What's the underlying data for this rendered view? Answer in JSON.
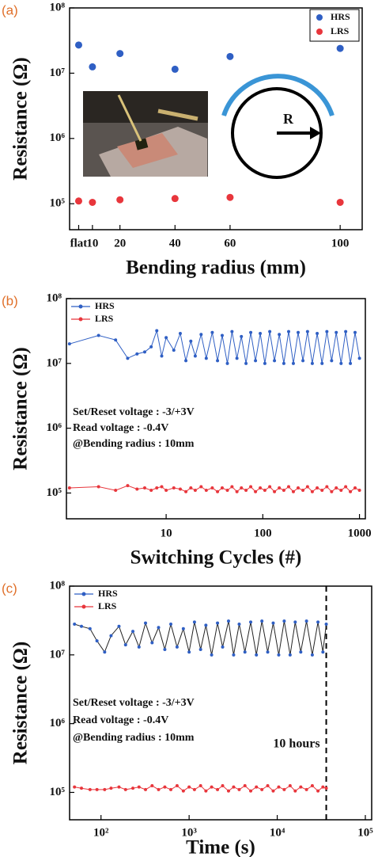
{
  "chart_data": [
    {
      "type": "scatter",
      "panel_label": "(a)",
      "x_label": "Bending radius (mm)",
      "y_label": "Resistance (Ω)",
      "x": [
        5,
        10,
        20,
        40,
        60,
        100
      ],
      "series": [
        {
          "name": "HRS",
          "color": "#2f5fc4",
          "values": [
            27000000.0,
            12500000.0,
            20000000.0,
            11500000.0,
            18000000.0,
            24000000.0
          ]
        },
        {
          "name": "LRS",
          "color": "#e8363c",
          "values": [
            110000.0,
            105000.0,
            115000.0,
            120000.0,
            125000.0,
            105000.0
          ]
        }
      ],
      "xlim": [
        1.7,
        108
      ],
      "xticks": [
        {
          "value": 5,
          "label": "flat"
        },
        10,
        20,
        40,
        60,
        100
      ],
      "ylim": [
        40000,
        100000000.0
      ],
      "y_log": true,
      "yticks": [
        {
          "value": 100000,
          "label": "10⁵"
        },
        {
          "value": 1000000,
          "label": "10⁶"
        },
        {
          "value": 10000000,
          "label": "10⁷"
        },
        {
          "value": 100000000,
          "label": "10⁸"
        }
      ],
      "legend": "upper right",
      "annotations": [
        "R"
      ]
    },
    {
      "type": "line",
      "panel_label": "(b)",
      "x_label": "Switching Cycles (#)",
      "y_label": "Resistance (Ω)",
      "x": [
        1,
        2,
        3,
        4,
        5,
        6,
        7,
        8,
        9,
        10,
        12,
        14,
        16,
        18,
        20,
        23,
        26,
        30,
        34,
        38,
        43,
        48,
        54,
        60,
        67,
        75,
        84,
        94,
        105,
        118,
        132,
        148,
        165,
        185,
        207,
        232,
        260,
        290,
        325,
        365,
        410,
        460,
        515,
        575,
        645,
        720,
        805,
        900,
        1000
      ],
      "series": [
        {
          "name": "HRS",
          "color": "#2f5fc4",
          "values": [
            20000000.0,
            27000000.0,
            23000000.0,
            12000000.0,
            14000000.0,
            15000000.0,
            18000000.0,
            32000000.0,
            13000000.0,
            25000000.0,
            16000000.0,
            29000000.0,
            11000000.0,
            22000000.0,
            13000000.0,
            28000000.0,
            12000000.0,
            30000000.0,
            11000000.0,
            27000000.0,
            10000000.0,
            31000000.0,
            12000000.0,
            26000000.0,
            10000000.0,
            30000000.0,
            11000000.0,
            29000000.0,
            10000000.0,
            31000000.0,
            11000000.0,
            28000000.0,
            10000000.0,
            31000000.0,
            10000000.0,
            30000000.0,
            11000000.0,
            31000000.0,
            10000000.0,
            29000000.0,
            10000000.0,
            31000000.0,
            11000000.0,
            30000000.0,
            10000000.0,
            31000000.0,
            10000000.0,
            30000000.0,
            12000000.0
          ]
        },
        {
          "name": "LRS",
          "color": "#e8363c",
          "values": [
            120000.0,
            125000.0,
            110000.0,
            130000.0,
            115000.0,
            120000.0,
            110000.0,
            120000.0,
            125000.0,
            110000.0,
            120000.0,
            115000.0,
            105000.0,
            120000.0,
            110000.0,
            125000.0,
            110000.0,
            120000.0,
            105000.0,
            120000.0,
            110000.0,
            125000.0,
            105000.0,
            120000.0,
            110000.0,
            125000.0,
            105000.0,
            120000.0,
            110000.0,
            125000.0,
            105000.0,
            120000.0,
            110000.0,
            125000.0,
            105000.0,
            120000.0,
            110000.0,
            125000.0,
            105000.0,
            120000.0,
            110000.0,
            125000.0,
            105000.0,
            120000.0,
            110000.0,
            125000.0,
            105000.0,
            120000.0,
            110000.0
          ]
        }
      ],
      "xlim": [
        0.93,
        1150
      ],
      "x_log": true,
      "xticks": [
        10,
        100,
        1000
      ],
      "ylim": [
        40000,
        100000000.0
      ],
      "y_log": true,
      "yticks": [
        {
          "value": 100000,
          "label": "10⁵"
        },
        {
          "value": 1000000,
          "label": "10⁶"
        },
        {
          "value": 10000000,
          "label": "10⁷"
        },
        {
          "value": 100000000,
          "label": "10⁸"
        }
      ],
      "legend": "upper left",
      "annotations": [
        "Set/Reset voltage : -3/+3V",
        "Read voltage : -0.4V",
        "@Bending radius : 10mm"
      ]
    },
    {
      "type": "line",
      "panel_label": "(c)",
      "x_label": "Time (s)",
      "y_label": "Resistance (Ω)",
      "x": [
        50,
        60,
        75,
        90,
        110,
        130,
        160,
        190,
        230,
        270,
        320,
        380,
        450,
        530,
        620,
        730,
        860,
        1000,
        1150,
        1350,
        1550,
        1800,
        2100,
        2400,
        2800,
        3200,
        3700,
        4300,
        5000,
        5800,
        6700,
        7800,
        9000,
        10400,
        12000,
        14000,
        16000,
        18500,
        21500,
        25000,
        29000,
        33000,
        36000
      ],
      "series": [
        {
          "name": "HRS",
          "color": "#2f5fc4",
          "line_color": "#222222",
          "values": [
            28000000.0,
            26000000.0,
            24000000.0,
            16000000.0,
            11000000.0,
            19000000.0,
            26000000.0,
            14000000.0,
            22000000.0,
            13000000.0,
            29000000.0,
            15000000.0,
            25000000.0,
            12000000.0,
            28000000.0,
            13000000.0,
            24000000.0,
            11000000.0,
            30000000.0,
            12000000.0,
            27000000.0,
            10000000.0,
            29000000.0,
            13000000.0,
            31000000.0,
            10000000.0,
            28000000.0,
            11000000.0,
            30000000.0,
            10000000.0,
            31000000.0,
            11000000.0,
            29000000.0,
            10000000.0,
            31000000.0,
            10000000.0,
            30000000.0,
            11000000.0,
            31000000.0,
            10000000.0,
            30000000.0,
            11000000.0,
            28000000.0
          ]
        },
        {
          "name": "LRS",
          "color": "#e8363c",
          "values": [
            120000.0,
            115000.0,
            110000.0,
            110000.0,
            110000.0,
            115000.0,
            120000.0,
            110000.0,
            115000.0,
            120000.0,
            110000.0,
            125000.0,
            110000.0,
            120000.0,
            110000.0,
            125000.0,
            105000.0,
            120000.0,
            110000.0,
            125000.0,
            105000.0,
            120000.0,
            110000.0,
            125000.0,
            105000.0,
            120000.0,
            110000.0,
            125000.0,
            105000.0,
            120000.0,
            110000.0,
            125000.0,
            105000.0,
            120000.0,
            110000.0,
            125000.0,
            105000.0,
            120000.0,
            110000.0,
            125000.0,
            105000.0,
            120000.0,
            115000.0
          ]
        }
      ],
      "xlim": [
        44,
        118000
      ],
      "x_log": true,
      "xticks": [
        {
          "value": 100,
          "label": "10²"
        },
        {
          "value": 1000,
          "label": "10³"
        },
        {
          "value": 10000,
          "label": "10⁴"
        },
        {
          "value": 100000,
          "label": "10⁵"
        }
      ],
      "ylim": [
        40000,
        100000000.0
      ],
      "y_log": true,
      "yticks": [
        {
          "value": 100000,
          "label": "10⁵"
        },
        {
          "value": 1000000,
          "label": "10⁶"
        },
        {
          "value": 10000000,
          "label": "10⁷"
        },
        {
          "value": 100000000,
          "label": "10⁸"
        }
      ],
      "legend": "upper left",
      "annotations": [
        "Set/Reset voltage : -3/+3V",
        "Read voltage : -0.4V",
        "@Bending radius : 10mm"
      ],
      "vline": {
        "x": 36000,
        "label": "10 hours"
      }
    }
  ]
}
